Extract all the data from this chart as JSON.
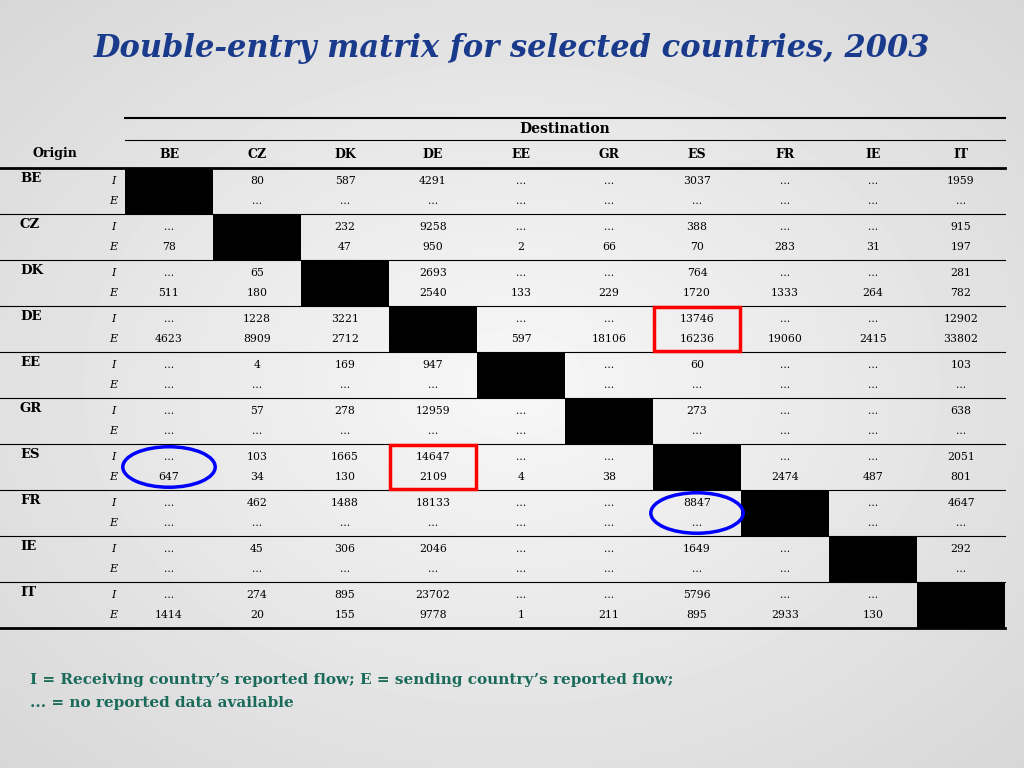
{
  "title": "Double-entry matrix for selected countries, 2003",
  "title_color": "#1a3a8c",
  "dest_label": "Destination",
  "origin_label": "Origin",
  "columns": [
    "BE",
    "CZ",
    "DK",
    "DE",
    "EE",
    "GR",
    "ES",
    "FR",
    "IE",
    "IT"
  ],
  "rows": [
    {
      "country": "BE",
      "I": [
        "",
        "80",
        "587",
        "4291",
        "...",
        "...",
        "3037",
        "...",
        "...",
        "1959"
      ],
      "E": [
        "",
        "...",
        "...",
        "...",
        "...",
        "...",
        "...",
        "...",
        "...",
        "..."
      ]
    },
    {
      "country": "CZ",
      "I": [
        "...",
        "",
        "232",
        "9258",
        "...",
        "...",
        "388",
        "...",
        "...",
        "915"
      ],
      "E": [
        "78",
        "",
        "47",
        "950",
        "2",
        "66",
        "70",
        "283",
        "31",
        "197"
      ]
    },
    {
      "country": "DK",
      "I": [
        "...",
        "65",
        "",
        "2693",
        "...",
        "...",
        "764",
        "...",
        "...",
        "281"
      ],
      "E": [
        "511",
        "180",
        "",
        "2540",
        "133",
        "229",
        "1720",
        "1333",
        "264",
        "782"
      ]
    },
    {
      "country": "DE",
      "I": [
        "...",
        "1228",
        "3221",
        "",
        "...",
        "...",
        "13746",
        "...",
        "...",
        "12902"
      ],
      "E": [
        "4623",
        "8909",
        "2712",
        "",
        "597",
        "18106",
        "16236",
        "19060",
        "2415",
        "33802"
      ]
    },
    {
      "country": "EE",
      "I": [
        "...",
        "4",
        "169",
        "947",
        "",
        "...",
        "60",
        "...",
        "...",
        "103"
      ],
      "E": [
        "...",
        "...",
        "...",
        "...",
        "",
        "...",
        "...",
        "...",
        "...",
        "..."
      ]
    },
    {
      "country": "GR",
      "I": [
        "...",
        "57",
        "278",
        "12959",
        "...",
        "",
        "273",
        "...",
        "...",
        "638"
      ],
      "E": [
        "...",
        "...",
        "...",
        "...",
        "...",
        "",
        "...",
        "...",
        "...",
        "..."
      ]
    },
    {
      "country": "ES",
      "I": [
        "...",
        "103",
        "1665",
        "14647",
        "...",
        "...",
        "",
        "...",
        "...",
        "2051"
      ],
      "E": [
        "647",
        "34",
        "130",
        "2109",
        "4",
        "38",
        "",
        "2474",
        "487",
        "801"
      ]
    },
    {
      "country": "FR",
      "I": [
        "...",
        "462",
        "1488",
        "18133",
        "...",
        "...",
        "8847",
        "",
        "...",
        "4647"
      ],
      "E": [
        "...",
        "...",
        "...",
        "...",
        "...",
        "...",
        "...",
        "",
        "...",
        "..."
      ]
    },
    {
      "country": "IE",
      "I": [
        "...",
        "45",
        "306",
        "2046",
        "...",
        "...",
        "1649",
        "...",
        "",
        "292"
      ],
      "E": [
        "...",
        "...",
        "...",
        "...",
        "...",
        "...",
        "...",
        "...",
        "",
        "..."
      ]
    },
    {
      "country": "IT",
      "I": [
        "...",
        "274",
        "895",
        "23702",
        "...",
        "...",
        "5796",
        "...",
        "...",
        ""
      ],
      "E": [
        "1414",
        "20",
        "155",
        "9778",
        "1",
        "211",
        "895",
        "2933",
        "130",
        ""
      ]
    }
  ],
  "footnote_line1": "I = Receiving country’s reported flow; E = sending country’s reported flow;",
  "footnote_line2": "... = no reported data available",
  "footnote_color": "#1a6b5a",
  "red_box_cells": [
    {
      "row": 3,
      "col": 6
    },
    {
      "row": 6,
      "col": 3
    }
  ],
  "blue_circle_cells": [
    {
      "row": 6,
      "col": 0
    },
    {
      "row": 7,
      "col": 6
    }
  ]
}
